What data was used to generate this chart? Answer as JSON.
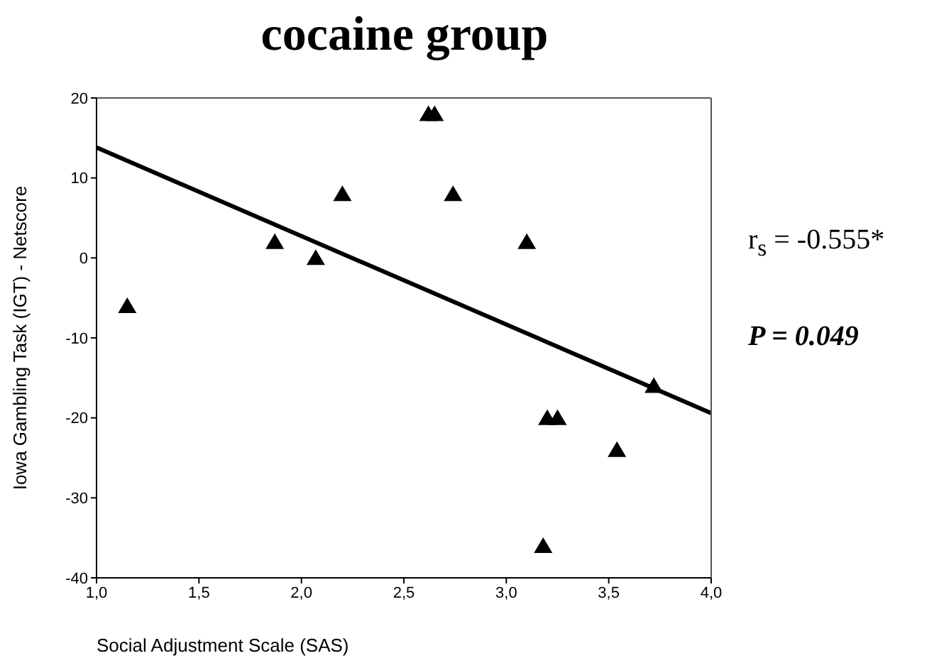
{
  "chart_data": {
    "type": "scatter",
    "title": "cocaine group",
    "xlabel": "Social Adjustment Scale (SAS)",
    "ylabel": "Iowa Gambling Task (IGT) - Netscore",
    "xlim": [
      1,
      4
    ],
    "xticks": [
      {
        "value": 1,
        "label": "1,0"
      },
      {
        "value": 1.5,
        "label": "1,5"
      },
      {
        "value": 2,
        "label": "2,0"
      },
      {
        "value": 2.5,
        "label": "2,5"
      },
      {
        "value": 3,
        "label": "3,0"
      },
      {
        "value": 3.5,
        "label": "3,5"
      },
      {
        "value": 4,
        "label": "4,0"
      }
    ],
    "ylim": [
      -40,
      20
    ],
    "yticks": [
      -40,
      -30,
      -20,
      -10,
      0,
      10,
      20
    ],
    "series": [
      {
        "color": "#000000",
        "marker": "triangle",
        "x": [
          1.15,
          1.87,
          2.07,
          2.2,
          2.62,
          2.65,
          2.74,
          3.1,
          3.18,
          3.2,
          3.25,
          3.54,
          3.72
        ],
        "values": [
          -6,
          2,
          0,
          8,
          18,
          18,
          8,
          2,
          -36,
          -20,
          -20,
          -24,
          -16
        ]
      },
      {
        "type": "line",
        "color": "#000000",
        "marker": "none",
        "line_style": "solid",
        "x": [
          1,
          4
        ],
        "values": [
          13.8,
          -19.4
        ]
      }
    ],
    "annotations": [
      "r$_{s}$ = -0.555*",
      "P = 0.049"
    ]
  }
}
